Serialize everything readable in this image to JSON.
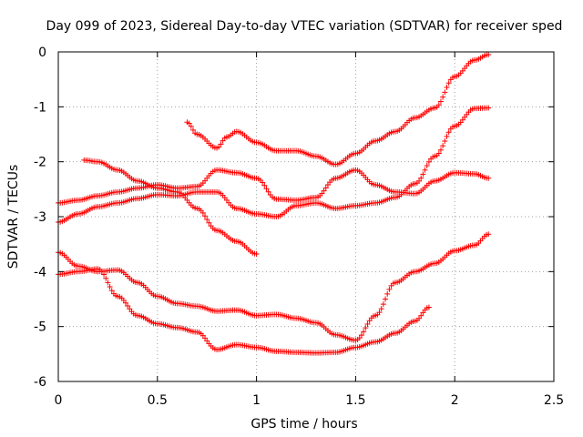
{
  "chart_data": {
    "type": "scatter",
    "title": "Day 099 of 2023, Sidereal Day-to-day VTEC variation (SDTVAR) for receiver sped",
    "xlabel": "GPS time / hours",
    "ylabel": "SDTVAR / TECUs",
    "xlim": [
      0,
      2.5
    ],
    "ylim": [
      -6,
      0
    ],
    "x_ticks": [
      0,
      0.5,
      1,
      1.5,
      2,
      2.5
    ],
    "x_tick_labels": [
      "0",
      "0.5",
      "1",
      "1.5",
      "2",
      "2.5"
    ],
    "y_ticks": [
      0,
      -1,
      -2,
      -3,
      -4,
      -5,
      -6
    ],
    "y_tick_labels": [
      "0",
      "-1",
      "-2",
      "-3",
      "-4",
      "-5",
      "-6"
    ],
    "grid": true,
    "marker": "plus",
    "color": "#ff0000",
    "series": [
      {
        "x": [
          0.0,
          0.1,
          0.2,
          0.3,
          0.4,
          0.5,
          0.6,
          0.7,
          0.8,
          0.9,
          1.0,
          1.1,
          1.2,
          1.3,
          1.4,
          1.5,
          1.6,
          1.7,
          1.8,
          1.9,
          2.0,
          2.1,
          2.17
        ],
        "y": [
          -2.75,
          -2.7,
          -2.62,
          -2.55,
          -2.48,
          -2.42,
          -2.48,
          -2.45,
          -2.15,
          -2.2,
          -2.3,
          -2.68,
          -2.7,
          -2.65,
          -2.3,
          -2.15,
          -2.42,
          -2.55,
          -2.58,
          -2.35,
          -2.2,
          -2.22,
          -2.3
        ]
      },
      {
        "x": [
          0.0,
          0.1,
          0.2,
          0.3,
          0.4,
          0.5,
          0.6,
          0.7,
          0.8,
          0.9,
          1.0,
          1.1,
          1.2,
          1.3,
          1.4,
          1.5,
          1.6,
          1.7,
          1.8,
          1.9,
          2.0,
          2.1,
          2.17
        ],
        "y": [
          -3.1,
          -2.95,
          -2.82,
          -2.75,
          -2.67,
          -2.6,
          -2.62,
          -2.55,
          -2.55,
          -2.85,
          -2.95,
          -3.0,
          -2.8,
          -2.75,
          -2.85,
          -2.8,
          -2.75,
          -2.65,
          -2.4,
          -1.9,
          -1.35,
          -1.03,
          -1.02
        ]
      },
      {
        "x": [
          0.0,
          0.1,
          0.2,
          0.3,
          0.4,
          0.5,
          0.6,
          0.7,
          0.8,
          0.9,
          1.0,
          1.1,
          1.2,
          1.3,
          1.4,
          1.5,
          1.6,
          1.7,
          1.8,
          1.9,
          2.0,
          2.1,
          2.17
        ],
        "y": [
          -3.65,
          -3.9,
          -4.0,
          -3.97,
          -4.2,
          -4.45,
          -4.58,
          -4.63,
          -4.72,
          -4.7,
          -4.8,
          -4.78,
          -4.85,
          -4.93,
          -5.15,
          -5.25,
          -4.8,
          -4.2,
          -4.0,
          -3.85,
          -3.62,
          -3.52,
          -3.32
        ]
      },
      {
        "x": [
          0.0,
          0.1,
          0.2,
          0.3,
          0.4,
          0.5,
          0.6,
          0.7,
          0.8,
          0.9,
          1.0,
          1.1,
          1.2,
          1.3,
          1.4,
          1.5,
          1.6,
          1.7,
          1.8,
          1.87
        ],
        "y": [
          -4.05,
          -4.0,
          -3.95,
          -4.45,
          -4.8,
          -4.95,
          -5.02,
          -5.1,
          -5.42,
          -5.33,
          -5.38,
          -5.45,
          -5.47,
          -5.48,
          -5.47,
          -5.38,
          -5.28,
          -5.12,
          -4.9,
          -4.65
        ]
      },
      {
        "x": [
          0.13,
          0.2,
          0.3,
          0.4,
          0.5,
          0.6,
          0.7,
          0.8,
          0.9,
          1.0
        ],
        "y": [
          -1.97,
          -2.0,
          -2.15,
          -2.35,
          -2.48,
          -2.55,
          -2.85,
          -3.25,
          -3.45,
          -3.68
        ]
      },
      {
        "x": [
          0.65,
          0.7,
          0.8,
          0.85,
          0.9,
          1.0,
          1.1,
          1.2,
          1.3,
          1.4,
          1.5,
          1.6,
          1.7,
          1.8,
          1.9,
          2.0,
          2.1,
          2.17
        ],
        "y": [
          -1.28,
          -1.5,
          -1.75,
          -1.55,
          -1.45,
          -1.65,
          -1.8,
          -1.8,
          -1.9,
          -2.05,
          -1.85,
          -1.62,
          -1.45,
          -1.2,
          -1.02,
          -0.45,
          -0.15,
          -0.05
        ]
      }
    ]
  }
}
